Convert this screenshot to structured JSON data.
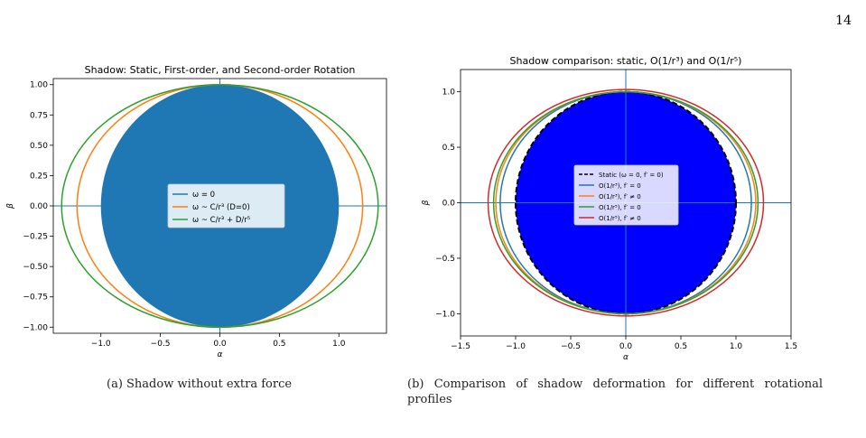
{
  "page_number": "14",
  "captions": {
    "a": "(a) Shadow without extra force",
    "b": "(b) Comparison of shadow deformation for different rotational profiles"
  },
  "chart_data": [
    {
      "type": "line",
      "title": "Shadow: Static, First-order, and Second-order Rotation",
      "xlabel": "α",
      "ylabel": "β",
      "xlim": [
        -1.4,
        1.4
      ],
      "ylim": [
        -1.05,
        1.05
      ],
      "xticks": [
        -1.0,
        -0.5,
        0.0,
        0.5,
        1.0
      ],
      "xtick_labels": [
        "−1.0",
        "−0.5",
        "0.0",
        "0.5",
        "1.0"
      ],
      "yticks": [
        -1.0,
        -0.75,
        -0.5,
        -0.25,
        0.0,
        0.25,
        0.5,
        0.75,
        1.0
      ],
      "ytick_labels": [
        "−1.00",
        "−0.75",
        "−0.50",
        "−0.25",
        "0.00",
        "0.25",
        "0.50",
        "0.75",
        "1.00"
      ],
      "grid": false,
      "legend": "center",
      "series": [
        {
          "name": "ω = 0",
          "color": "#1f77b4",
          "rx": 1.0,
          "ry": 1.0,
          "filled": true
        },
        {
          "name": "ω ~ C/r³ (D=0)",
          "color": "#ff7f0e",
          "rx": 1.2,
          "ry": 1.0,
          "filled": false
        },
        {
          "name": "ω ~ C/r³ + D/r⁵",
          "color": "#2ca02c",
          "rx": 1.33,
          "ry": 1.0,
          "filled": false
        }
      ]
    },
    {
      "type": "line",
      "title": "Shadow comparison: static, O(1/r³) and O(1/r⁵)",
      "xlabel": "α",
      "ylabel": "β",
      "xlim": [
        -1.5,
        1.5
      ],
      "ylim": [
        -1.2,
        1.2
      ],
      "xticks": [
        -1.5,
        -1.0,
        -0.5,
        0.0,
        0.5,
        1.0,
        1.5
      ],
      "xtick_labels": [
        "−1.5",
        "−1.0",
        "−0.5",
        "0.0",
        "0.5",
        "1.0",
        "1.5"
      ],
      "yticks": [
        -1.0,
        -0.5,
        0.0,
        0.5,
        1.0
      ],
      "ytick_labels": [
        "−1.0",
        "−0.5",
        "0.0",
        "0.5",
        "1.0"
      ],
      "grid": false,
      "legend": "center",
      "series": [
        {
          "name": "Static (ω = 0,  f′ = 0)",
          "color": "#000000",
          "rx": 1.0,
          "ry": 1.0,
          "filled": true,
          "fill": "#0000ff",
          "dashed": true
        },
        {
          "name": "O(1/r³),  f′ = 0",
          "color": "#1f77b4",
          "rx": 1.14,
          "ry": 1.0,
          "filled": false
        },
        {
          "name": "O(1/r³),  f′ ≠ 0",
          "color": "#ff7f0e",
          "rx": 1.18,
          "ry": 1.0,
          "filled": false
        },
        {
          "name": "O(1/r⁵),  f′ = 0",
          "color": "#2ca02c",
          "rx": 1.2,
          "ry": 1.0,
          "filled": false
        },
        {
          "name": "O(1/r⁵),  f′ ≠ 0",
          "color": "#d62728",
          "rx": 1.25,
          "ry": 1.02,
          "filled": false
        }
      ]
    }
  ]
}
